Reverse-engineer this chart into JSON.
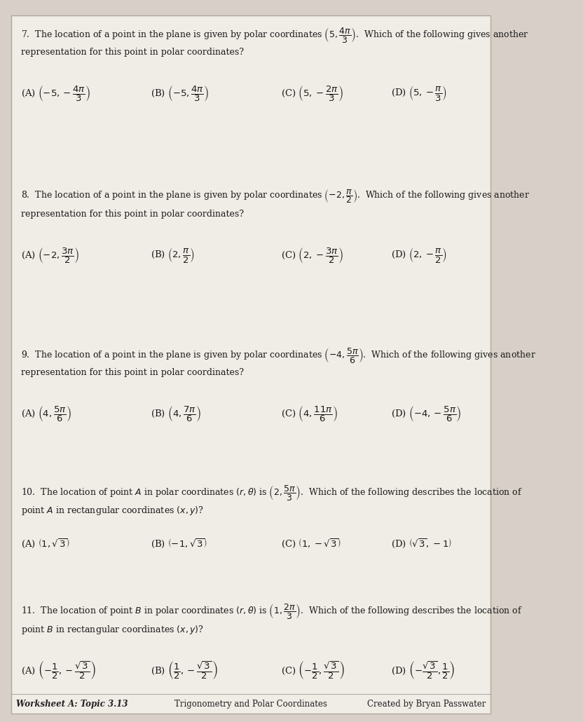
{
  "bg_color": "#d8d0c8",
  "paper_color": "#f0ece6",
  "q7": {
    "question": "7.  The location of a point in the plane is given by polar coordinates $\\left(5, \\dfrac{4\\pi}{3}\\right)$.  Which of the following gives another",
    "subtext": "representation for this point in polar coordinates?",
    "A": "(A) $\\left(-5, -\\dfrac{4\\pi}{3}\\right)$",
    "B": "(B) $\\left(-5, \\dfrac{4\\pi}{3}\\right)$",
    "C": "(C) $\\left(5, -\\dfrac{2\\pi}{3}\\right)$",
    "D": "(D) $\\left(5, -\\dfrac{\\pi}{3}\\right)$"
  },
  "q8": {
    "question": "8.  The location of a point in the plane is given by polar coordinates $\\left(-2, \\dfrac{\\pi}{2}\\right)$.  Which of the following gives another",
    "subtext": "representation for this point in polar coordinates?",
    "A": "(A) $\\left(-2, \\dfrac{3\\pi}{2}\\right)$",
    "B": "(B) $\\left(2, \\dfrac{\\pi}{2}\\right)$",
    "C": "(C) $\\left(2, -\\dfrac{3\\pi}{2}\\right)$",
    "D": "(D) $\\left(2, -\\dfrac{\\pi}{2}\\right)$"
  },
  "q9": {
    "question": "9.  The location of a point in the plane is given by polar coordinates $\\left(-4, \\dfrac{5\\pi}{6}\\right)$.  Which of the following gives another",
    "subtext": "representation for this point in polar coordinates?",
    "A": "(A) $\\left(4, \\dfrac{5\\pi}{6}\\right)$",
    "B": "(B) $\\left(4, \\dfrac{7\\pi}{6}\\right)$",
    "C": "(C) $\\left(4, \\dfrac{11\\pi}{6}\\right)$",
    "D": "(D) $\\left(-4, -\\dfrac{5\\pi}{6}\\right)$"
  },
  "q10": {
    "question": "10.  The location of point $A$ in polar coordinates $(r, \\theta)$ is $\\left(2, \\dfrac{5\\pi}{3}\\right)$.  Which of the following describes the location of",
    "subtext": "point $A$ in rectangular coordinates $(x, y)$?",
    "A": "(A) $\\left(1, \\sqrt{3}\\right)$",
    "B": "(B) $\\left(-1, \\sqrt{3}\\right)$",
    "C": "(C) $\\left(1, -\\sqrt{3}\\right)$",
    "D": "(D) $\\left(\\sqrt{3}, -1\\right)$"
  },
  "q11": {
    "question": "11.  The location of point $B$ in polar coordinates $(r, \\theta)$ is $\\left(1, \\dfrac{2\\pi}{3}\\right)$.  Which of the following describes the location of",
    "subtext": "point $B$ in rectangular coordinates $(x, y)$?",
    "A": "(A) $\\left(-\\dfrac{1}{2}, -\\dfrac{\\sqrt{3}}{2}\\right)$",
    "B": "(B) $\\left(\\dfrac{1}{2}, -\\dfrac{\\sqrt{3}}{2}\\right)$",
    "C": "(C) $\\left(-\\dfrac{1}{2}, \\dfrac{\\sqrt{3}}{2}\\right)$",
    "D": "(D) $\\left(-\\dfrac{\\sqrt{3}}{2}, \\dfrac{1}{2}\\right)$"
  },
  "footer_left": "Worksheet A: Topic 3.13",
  "footer_center": "Trigonometry and Polar Coordinates",
  "footer_right": "Created by Bryan Passwater"
}
